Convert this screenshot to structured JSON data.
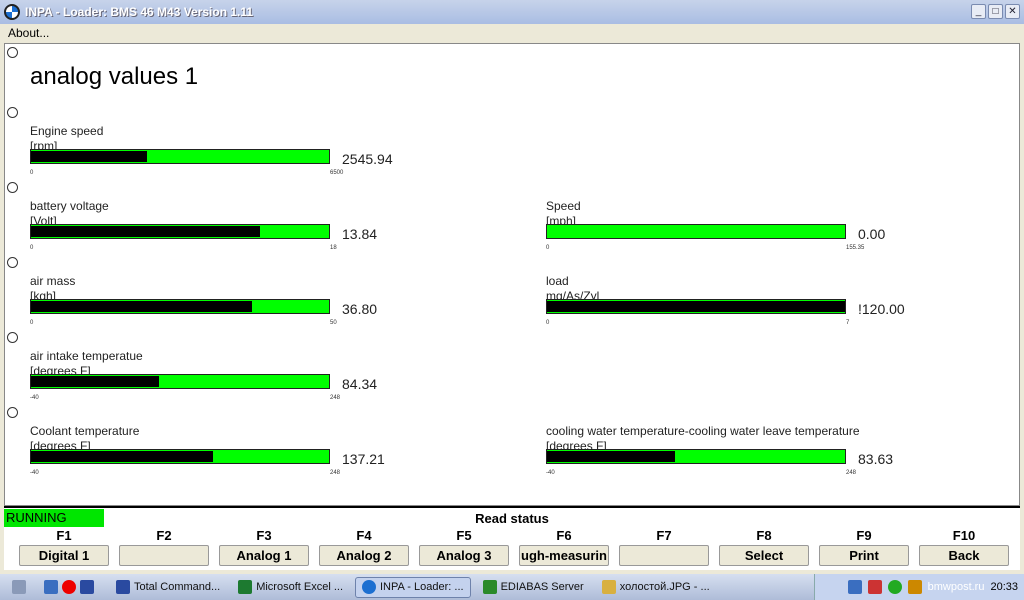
{
  "window": {
    "title": "INPA - Loader:  BMS 46 M43 Version 1.11",
    "minimize": "_",
    "maximize": "□",
    "close": "✕"
  },
  "menu": {
    "about": "About..."
  },
  "heading": "analog values 1",
  "gauges": [
    {
      "label": "Engine speed",
      "unit": "[rpm]",
      "value": "2545.94",
      "min": "0",
      "max": "6500",
      "fraction": 0.39
    },
    {
      "label": "battery voltage",
      "unit": "[Volt]",
      "value": "13.84",
      "min": "0",
      "max": "18",
      "fraction": 0.77
    },
    {
      "label": "Speed",
      "unit": "[mph]",
      "value": "0.00",
      "min": "0",
      "max": "155.35",
      "fraction": 0
    },
    {
      "label": "air mass",
      "unit": "[kgh]",
      "value": "36.80",
      "min": "0",
      "max": "50",
      "fraction": 0.74
    },
    {
      "label": "load",
      "unit": "mg/As/Zyl",
      "value": "!120.00",
      "min": "0",
      "max": "7",
      "fraction": 1
    },
    {
      "label": "air intake temperatue",
      "unit": "[degrees F]",
      "value": "84.34",
      "min": "-40",
      "max": "248",
      "fraction": 0.43
    },
    {
      "label": "Coolant temperature",
      "unit": "[degrees F]",
      "value": "137.21",
      "min": "-40",
      "max": "248",
      "fraction": 0.61
    },
    {
      "label": "cooling water temperature-cooling water leave temperature",
      "unit": "[degrees F]",
      "value": "83.63",
      "min": "-40",
      "max": "248",
      "fraction": 0.43
    }
  ],
  "status": {
    "running": "RUNNING",
    "read_status": "Read status"
  },
  "fkeys": [
    {
      "key": "F1",
      "label": "Digital 1"
    },
    {
      "key": "F2",
      "label": ""
    },
    {
      "key": "F3",
      "label": "Analog 1"
    },
    {
      "key": "F4",
      "label": "Analog 2"
    },
    {
      "key": "F5",
      "label": "Analog 3"
    },
    {
      "key": "F6",
      "label": "ugh-measurin"
    },
    {
      "key": "F7",
      "label": ""
    },
    {
      "key": "F8",
      "label": "Select"
    },
    {
      "key": "F9",
      "label": "Print"
    },
    {
      "key": "F10",
      "label": "Back"
    }
  ],
  "taskbar": {
    "items": [
      "Total Command...",
      "Microsoft Excel ...",
      "INPA - Loader:  ...",
      "EDIABAS Server",
      "холостой.JPG - ..."
    ],
    "clock": "20:33",
    "watermark": "bmwpost.ru"
  },
  "colors": {
    "bar_bg": "#00ff00",
    "bar_fill": "#000000",
    "running": "#00e600"
  }
}
